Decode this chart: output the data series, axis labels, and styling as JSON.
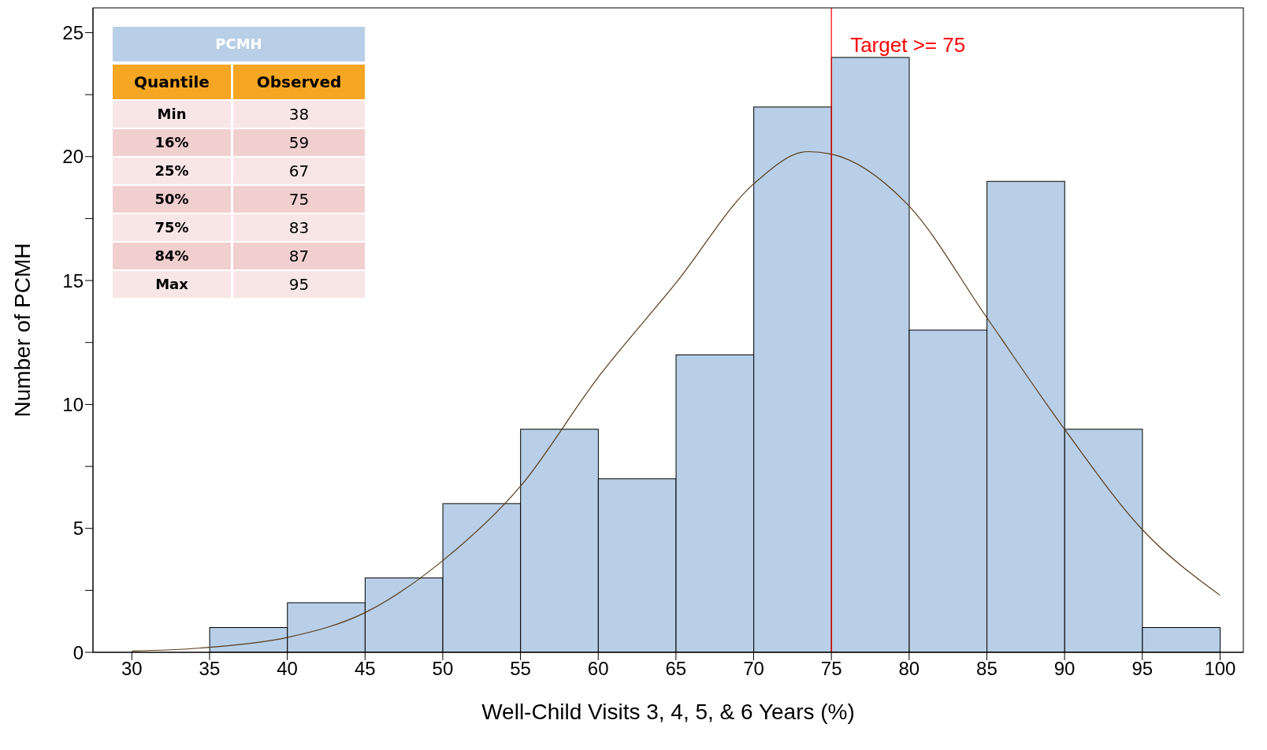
{
  "chart_data": {
    "type": "histogram",
    "xlabel": "Well-Child Visits 3, 4, 5, & 6 Years (%)",
    "ylabel": "Number of PCMH",
    "bins": [
      30,
      35,
      40,
      45,
      50,
      55,
      60,
      65,
      70,
      75,
      80,
      85,
      90,
      95,
      100
    ],
    "values": [
      0,
      1,
      2,
      3,
      6,
      9,
      7,
      12,
      22,
      24,
      13,
      19,
      9,
      1
    ],
    "color": "#b8cfe7",
    "series": [
      {
        "type": "line",
        "color": "#5a3a1a",
        "x": [
          30,
          35,
          40,
          45,
          50,
          55,
          60,
          65,
          70,
          73.5,
          75,
          80,
          85,
          90,
          95,
          100
        ],
        "values": [
          0.05,
          0.2,
          0.6,
          1.6,
          3.7,
          6.7,
          11.1,
          14.9,
          18.9,
          20.2,
          20.1,
          18,
          13.5,
          9,
          4.95,
          2.3
        ]
      }
    ],
    "xlim": [
      27.5,
      101.5
    ],
    "xticks": [
      30,
      35,
      40,
      45,
      50,
      55,
      60,
      65,
      70,
      75,
      80,
      85,
      90,
      95,
      100
    ],
    "ylim": [
      0,
      26
    ],
    "yticks": [
      0,
      {
        "value": 2.5,
        "label": null
      },
      5,
      {
        "value": 7.5,
        "label": null
      },
      10,
      {
        "value": 12.5,
        "label": null
      },
      15,
      {
        "value": 17.5,
        "label": null
      },
      20,
      {
        "value": 22.5,
        "label": null
      },
      25
    ],
    "ref_lines": [
      {
        "axis": "x",
        "value": 75,
        "label": "Target >= 75",
        "color": "#ff0000"
      }
    ],
    "grid": false,
    "legend": false,
    "marker": "none",
    "annotations": [
      "PCMH",
      "Quantile",
      "Observed",
      "Min",
      "38",
      "16%",
      "59",
      "25%",
      "67",
      "50%",
      "75",
      "75%",
      "83",
      "84%",
      "87",
      "Max",
      "95"
    ]
  }
}
